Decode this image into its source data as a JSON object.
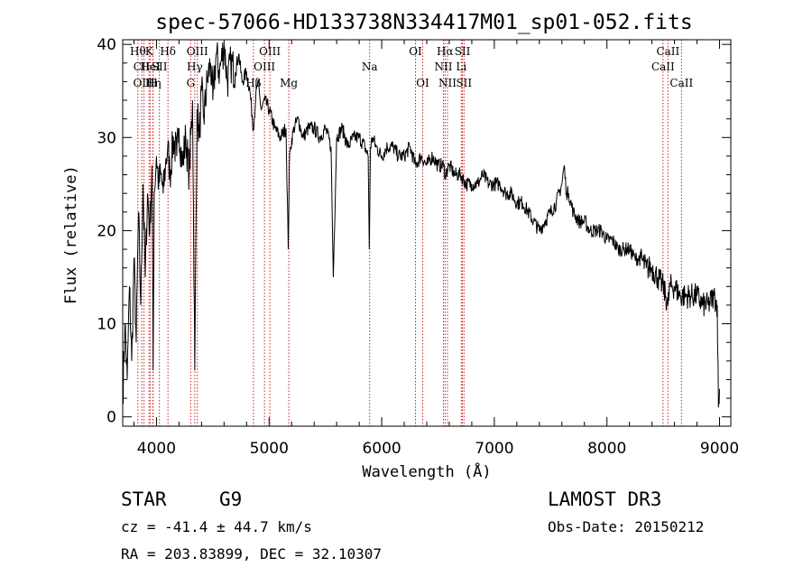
{
  "chart_data": {
    "type": "line",
    "title": "spec-57066-HD133738N334417M01_sp01-052.fits",
    "xlabel": "Wavelength (Å)",
    "ylabel": "Flux (relative)",
    "xlim": [
      3700,
      9100
    ],
    "ylim": [
      -1,
      40.5
    ],
    "xticks": [
      4000,
      5000,
      6000,
      7000,
      8000,
      9000
    ],
    "yticks": [
      0,
      10,
      20,
      30,
      40
    ],
    "series": [
      {
        "name": "spectrum",
        "x": [
          3700,
          3720,
          3740,
          3760,
          3780,
          3800,
          3820,
          3840,
          3860,
          3880,
          3900,
          3920,
          3940,
          3960,
          3970,
          3980,
          4000,
          4020,
          4040,
          4060,
          4080,
          4100,
          4120,
          4150,
          4180,
          4200,
          4230,
          4260,
          4290,
          4320,
          4340,
          4360,
          4380,
          4400,
          4420,
          4450,
          4480,
          4500,
          4530,
          4560,
          4600,
          4630,
          4660,
          4700,
          4730,
          4760,
          4800,
          4830,
          4860,
          4880,
          4900,
          4930,
          4960,
          5000,
          5050,
          5100,
          5150,
          5170,
          5180,
          5190,
          5220,
          5260,
          5300,
          5350,
          5400,
          5450,
          5500,
          5550,
          5570,
          5600,
          5650,
          5700,
          5750,
          5800,
          5850,
          5880,
          5890,
          5895,
          5900,
          5920,
          5950,
          6000,
          6050,
          6100,
          6150,
          6200,
          6250,
          6300,
          6350,
          6400,
          6450,
          6500,
          6550,
          6563,
          6600,
          6650,
          6700,
          6750,
          6800,
          6850,
          6900,
          6950,
          7000,
          7050,
          7100,
          7150,
          7200,
          7250,
          7300,
          7350,
          7400,
          7450,
          7500,
          7550,
          7600,
          7620,
          7640,
          7660,
          7700,
          7750,
          7800,
          7850,
          7900,
          7950,
          8000,
          8050,
          8100,
          8150,
          8200,
          8250,
          8300,
          8350,
          8400,
          8450,
          8500,
          8542,
          8560,
          8600,
          8650,
          8700,
          8750,
          8800,
          8850,
          8900,
          8950,
          8980,
          8990,
          9000
        ],
        "y": [
          2,
          10,
          4,
          14,
          6,
          17,
          8,
          22,
          12,
          25,
          15,
          24,
          20,
          27,
          5,
          24,
          28,
          25,
          26,
          24,
          27,
          29,
          26,
          30,
          28,
          31,
          27,
          30,
          26,
          34,
          5,
          33,
          30,
          35,
          32,
          36,
          38,
          34,
          39,
          37,
          40,
          36,
          38,
          37,
          39,
          36,
          37,
          35,
          31,
          34,
          36,
          33,
          34,
          33,
          31,
          30,
          31,
          18,
          27,
          29,
          31,
          32,
          30,
          31,
          31,
          30,
          31,
          29,
          15,
          30,
          31,
          29,
          30,
          30,
          29,
          28,
          18,
          24,
          29,
          30,
          29,
          28,
          29,
          29,
          28,
          28,
          29,
          27,
          28,
          27,
          28,
          27,
          27,
          26,
          27,
          26,
          26,
          25,
          25,
          25,
          26,
          25,
          25,
          25,
          24,
          24,
          23,
          23,
          22,
          21,
          20,
          21,
          22,
          23,
          25,
          27,
          24,
          24,
          22,
          21,
          21,
          20,
          20,
          20,
          19,
          19,
          18,
          18,
          18,
          17,
          17,
          16,
          16,
          15,
          14,
          12,
          14,
          14,
          13,
          13,
          13,
          13,
          12,
          12,
          13,
          12,
          1,
          3
        ]
      }
    ],
    "lines": [
      {
        "wl": 3835,
        "label": "Hθ",
        "row": 1
      },
      {
        "wl": 3869,
        "label": "CII",
        "row": 2
      },
      {
        "wl": 3889,
        "label": "OIII",
        "row": 3
      },
      {
        "wl": 3934,
        "label": "K",
        "row": 1
      },
      {
        "wl": 3945,
        "label": "HeI",
        "row": 2
      },
      {
        "wl": 3970,
        "label": "Hη",
        "row": 3
      },
      {
        "wl": 3968,
        "label": "H",
        "row": 3
      },
      {
        "wl": 4026,
        "label": "SII",
        "row": 2
      },
      {
        "wl": 4102,
        "label": "Hδ",
        "row": 1
      },
      {
        "wl": 4304,
        "label": "G",
        "row": 3
      },
      {
        "wl": 4340,
        "label": "Hγ",
        "row": 2
      },
      {
        "wl": 4363,
        "label": "OIII",
        "row": 1
      },
      {
        "wl": 4861,
        "label": "Hβ",
        "row": 3
      },
      {
        "wl": 4959,
        "label": "OIII",
        "row": 2
      },
      {
        "wl": 5007,
        "label": "OIII",
        "row": 1
      },
      {
        "wl": 5175,
        "label": "Mg",
        "row": 3
      },
      {
        "wl": 5893,
        "label": "Na",
        "row": 2
      },
      {
        "wl": 6300,
        "label": "OI",
        "row": 1
      },
      {
        "wl": 6364,
        "label": "OI",
        "row": 3
      },
      {
        "wl": 6548,
        "label": "NII",
        "row": 2
      },
      {
        "wl": 6563,
        "label": "Hα",
        "row": 1
      },
      {
        "wl": 6584,
        "label": "NII",
        "row": 3
      },
      {
        "wl": 6707,
        "label": "Li",
        "row": 2
      },
      {
        "wl": 6717,
        "label": "SII",
        "row": 1
      },
      {
        "wl": 6731,
        "label": "SII",
        "row": 3
      },
      {
        "wl": 8498,
        "label": "CaII",
        "row": 2
      },
      {
        "wl": 8542,
        "label": "CaII",
        "row": 1
      },
      {
        "wl": 8662,
        "label": "CaII",
        "row": 3
      }
    ]
  },
  "info": {
    "class": "STAR",
    "subclass": "G9",
    "survey": "LAMOST DR3",
    "cz": "cz = -41.4 ± 44.7 km/s",
    "obsdate": "Obs-Date: 20150212",
    "radec": "RA = 203.83899, DEC =  32.10307"
  },
  "colors": {
    "axis": "#000000",
    "spectrum": "#000000",
    "line_marker": "#cc2222"
  }
}
